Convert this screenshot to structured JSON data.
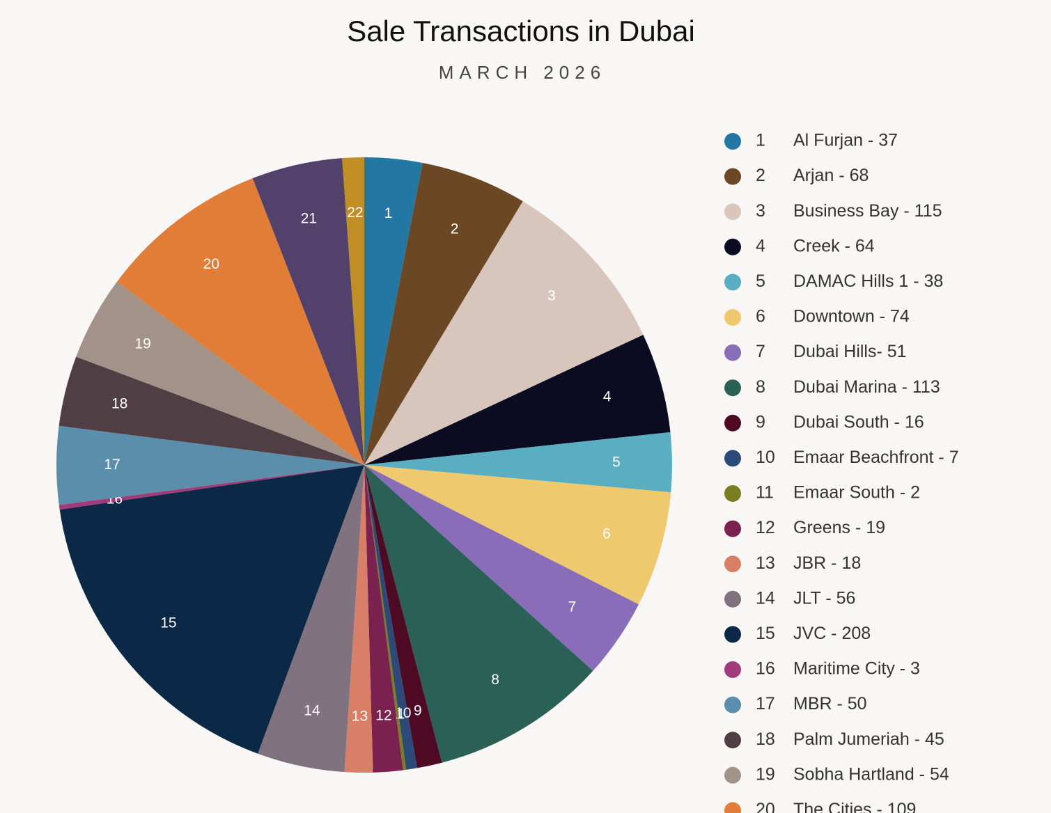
{
  "chart_data": {
    "type": "pie",
    "title": "Sale Transactions in Dubai",
    "subtitle": "MARCH 2026",
    "ids": [
      1,
      2,
      3,
      4,
      5,
      6,
      7,
      8,
      9,
      10,
      11,
      12,
      13,
      14,
      15,
      16,
      17,
      18,
      19,
      20,
      21,
      22
    ],
    "categories": [
      "Al Furjan - 37",
      "Arjan - 68",
      "Business Bay - 115",
      "Creek - 64",
      "DAMAC Hills 1 - 38",
      "Downtown - 74",
      "Dubai Hills- 51",
      "Dubai Marina - 113",
      "Dubai South - 16",
      "Emaar Beachfront - 7",
      "Emaar South - 2",
      "Greens - 19",
      "JBR - 18",
      "JLT - 56",
      "JVC - 208",
      "Maritime City - 3",
      "MBR - 50",
      "Palm Jumeriah - 45",
      "Sobha Hartland - 54",
      "The Cities - 109",
      null,
      null
    ],
    "values": [
      37,
      68,
      115,
      64,
      38,
      74,
      51,
      113,
      16,
      7,
      2,
      19,
      18,
      56,
      208,
      3,
      50,
      45,
      54,
      109,
      58,
      14
    ],
    "colors": [
      "#2577a3",
      "#6b4723",
      "#d8c6bc",
      "#0b0b22",
      "#5aaec2",
      "#eec96d",
      "#8a6db8",
      "#2b6057",
      "#4d0a22",
      "#2b4a78",
      "#7b7d22",
      "#7a2150",
      "#d97f68",
      "#80727f",
      "#0b2946",
      "#a13b7c",
      "#5b8eab",
      "#4f3f44",
      "#a39288",
      "#e27d38",
      "#51416b",
      "#c08e24"
    ],
    "legend": "right"
  }
}
